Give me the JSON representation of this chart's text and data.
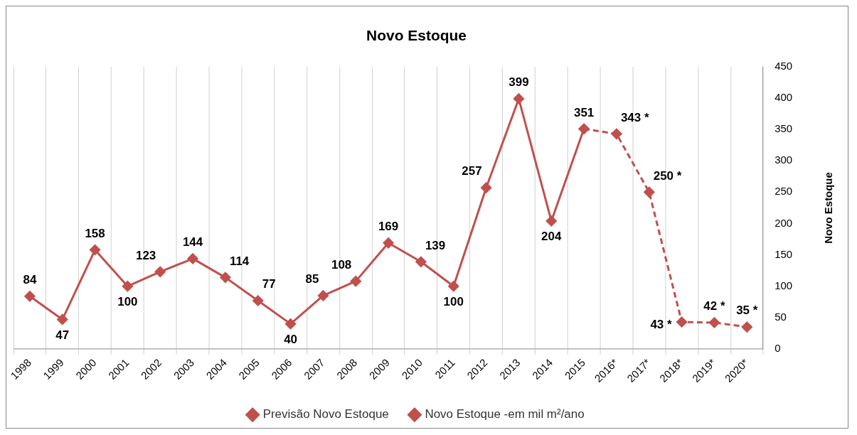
{
  "chart_data": {
    "type": "line",
    "title": "Novo Estoque",
    "ylabel": "Novo Estoque",
    "categories": [
      "1998",
      "1999",
      "2000",
      "2001",
      "2002",
      "2003",
      "2004",
      "2005",
      "2006",
      "2007",
      "2008",
      "2009",
      "2010",
      "2011",
      "2012",
      "2013",
      "2014",
      "2015",
      "2016*",
      "2017*",
      "2018*",
      "2019*",
      "2020*"
    ],
    "series": [
      {
        "name": "Previsão Novo Estoque",
        "color": "#c0504d",
        "line_style": "dashed",
        "values": [
          null,
          null,
          null,
          null,
          null,
          null,
          null,
          null,
          null,
          null,
          null,
          null,
          null,
          null,
          null,
          null,
          null,
          351,
          343,
          250,
          43,
          42,
          35
        ],
        "value_labels": [
          null,
          null,
          null,
          null,
          null,
          null,
          null,
          null,
          null,
          null,
          null,
          null,
          null,
          null,
          null,
          null,
          null,
          null,
          "343 *",
          "250 *",
          "43 *",
          "42 *",
          "35 *"
        ]
      },
      {
        "name": "Novo Estoque -em mil m²/ano",
        "color": "#c0504d",
        "line_style": "solid",
        "values": [
          84,
          47,
          158,
          100,
          123,
          144,
          114,
          77,
          40,
          85,
          108,
          169,
          139,
          100,
          257,
          399,
          204,
          351,
          null,
          null,
          null,
          null,
          null
        ],
        "value_labels": [
          "84",
          "47",
          "158",
          "100",
          "123",
          "144",
          "114",
          "77",
          "40",
          "85",
          "108",
          "169",
          "139",
          "100",
          "257",
          "399",
          "204",
          "351",
          null,
          null,
          null,
          null,
          null
        ]
      }
    ],
    "ylim": [
      0,
      450
    ],
    "yticks": [
      0,
      50,
      100,
      150,
      200,
      250,
      300,
      350,
      400,
      450
    ],
    "grid": "x",
    "legend": "bottom",
    "marker": "diamond"
  }
}
